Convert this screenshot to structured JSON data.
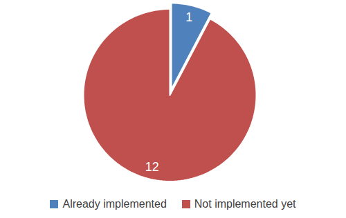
{
  "chart_data": {
    "type": "pie",
    "categories": [
      "Already implemented",
      "Not implemented yet"
    ],
    "values": [
      1,
      12
    ],
    "colors": [
      "#4f81bd",
      "#c0504d"
    ],
    "data_labels": true,
    "legend": "bottom"
  }
}
